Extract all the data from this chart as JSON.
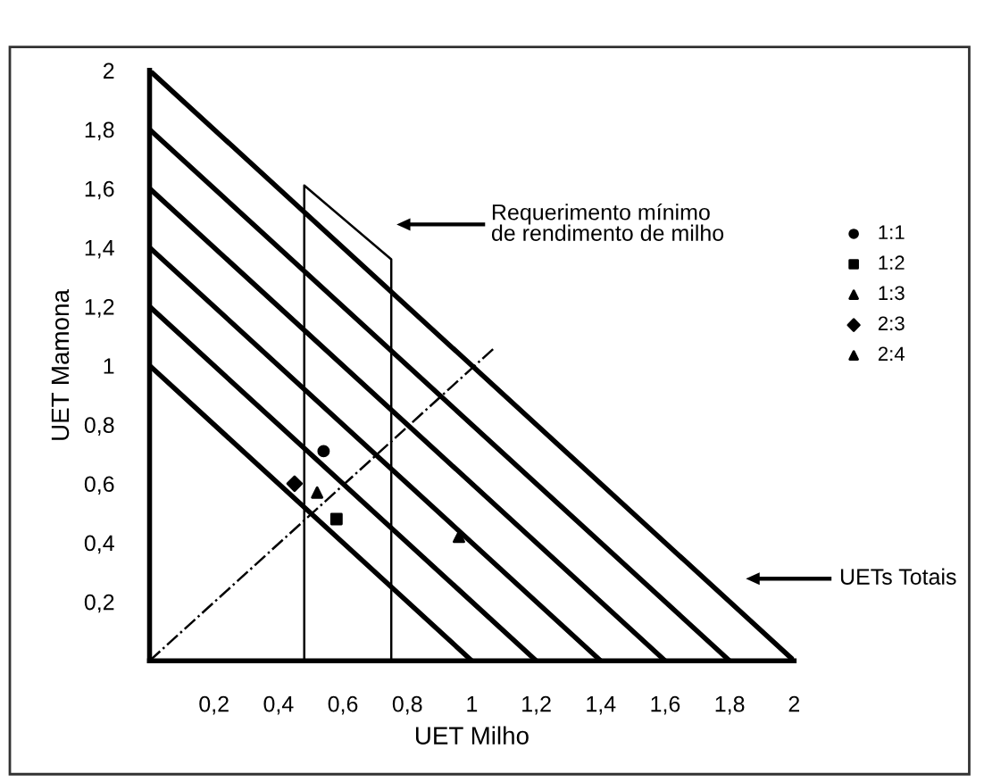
{
  "chart_data": {
    "type": "scatter",
    "xlabel": "UET Milho",
    "ylabel": "UET Mamona",
    "xlim": [
      0,
      2
    ],
    "ylim": [
      0,
      2
    ],
    "xticks": [
      {
        "value": 0.2,
        "label": "0,2"
      },
      {
        "value": 0.4,
        "label": "0,4"
      },
      {
        "value": 0.6,
        "label": "0,6"
      },
      {
        "value": 0.8,
        "label": "0,8"
      },
      1,
      {
        "value": 1.2,
        "label": "1,2"
      },
      {
        "value": 1.4,
        "label": "1,4"
      },
      {
        "value": 1.6,
        "label": "1,6"
      },
      {
        "value": 1.8,
        "label": "1,8"
      },
      2
    ],
    "yticks": [
      {
        "value": 0.2,
        "label": "0,2"
      },
      {
        "value": 0.4,
        "label": "0,4"
      },
      {
        "value": 0.6,
        "label": "0,6"
      },
      {
        "value": 0.8,
        "label": "0,8"
      },
      1,
      {
        "value": 1.2,
        "label": "1,2"
      },
      {
        "value": 1.4,
        "label": "1,4"
      },
      {
        "value": 1.6,
        "label": "1,6"
      },
      {
        "value": 1.8,
        "label": "1,8"
      },
      2
    ],
    "grid": false,
    "legend": "right",
    "series": [
      {
        "name": "1:1",
        "marker": "circle",
        "color": "#000000",
        "x": [
          0.54
        ],
        "values": [
          0.71
        ]
      },
      {
        "name": "1:2",
        "marker": "square",
        "color": "#000000",
        "x": [
          0.58
        ],
        "values": [
          0.48
        ]
      },
      {
        "name": "1:3",
        "marker": "triangle",
        "color": "#000000",
        "x": [
          0.96
        ],
        "values": [
          0.42
        ]
      },
      {
        "name": "2:3",
        "marker": "diamond",
        "color": "#000000",
        "x": [
          0.45
        ],
        "values": [
          0.6
        ]
      },
      {
        "name": "2:4",
        "marker": "triangle",
        "color": "#000000",
        "x": [
          0.52
        ],
        "values": [
          0.57
        ]
      },
      {
        "type": "line",
        "color": "#000000",
        "x": [
          0,
          1
        ],
        "values": [
          1,
          0
        ]
      },
      {
        "type": "line",
        "color": "#000000",
        "x": [
          0,
          1.2
        ],
        "values": [
          1.2,
          0
        ]
      },
      {
        "type": "line",
        "color": "#000000",
        "x": [
          0,
          1.4
        ],
        "values": [
          1.4,
          0
        ]
      },
      {
        "type": "line",
        "color": "#000000",
        "x": [
          0,
          1.6
        ],
        "values": [
          1.6,
          0
        ]
      },
      {
        "type": "line",
        "color": "#000000",
        "x": [
          0,
          1.8
        ],
        "values": [
          1.8,
          0
        ]
      },
      {
        "type": "line",
        "color": "#000000",
        "x": [
          0,
          2
        ],
        "values": [
          2,
          0
        ]
      },
      {
        "type": "line",
        "color": "#000000",
        "line_style": "dashdot",
        "x": [
          0,
          1.07
        ],
        "values": [
          0,
          1.06
        ]
      },
      {
        "type": "line",
        "color": "#000000",
        "x": [
          0.48,
          0.48,
          0.75,
          0.75
        ],
        "values": [
          0,
          1.61,
          1.36,
          0
        ]
      }
    ],
    "annotations": [
      "Requerimento mínimo\nde rendimento de milho",
      "UETs Totais"
    ]
  }
}
